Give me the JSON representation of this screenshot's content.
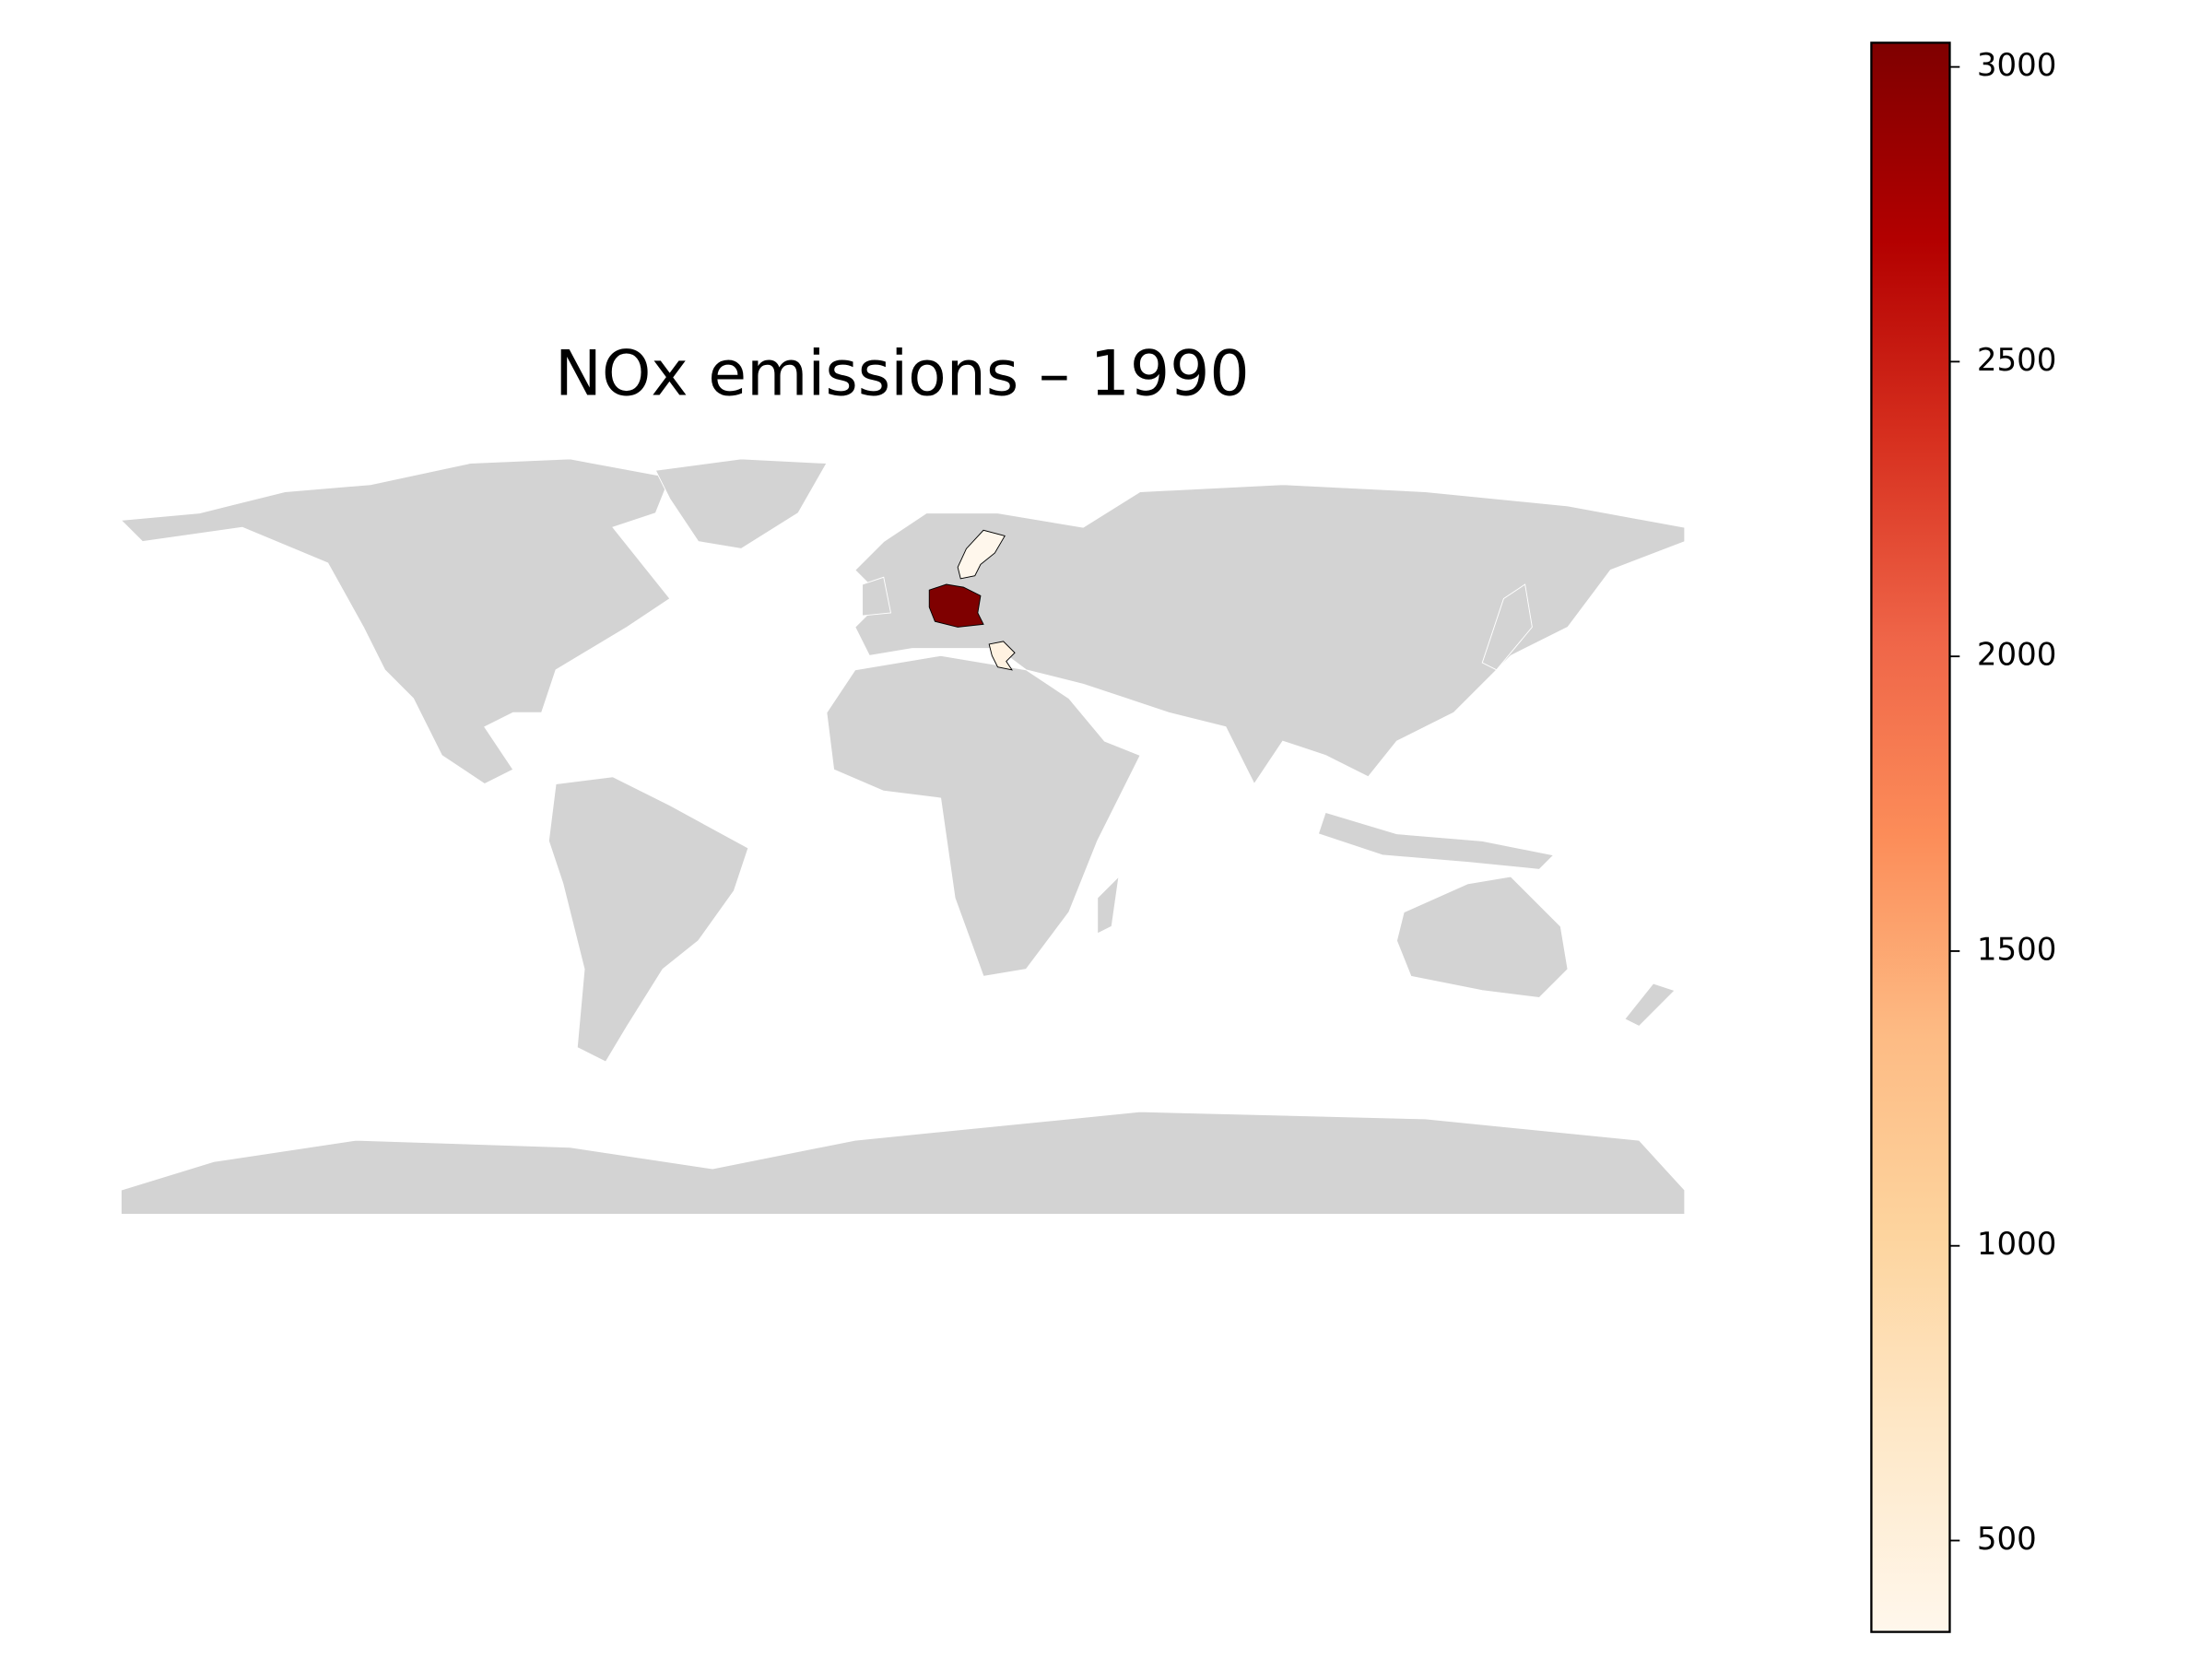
{
  "chart_data": {
    "type": "choropleth",
    "title": "NOx emissions – 1990",
    "values": [
      3041,
      345,
      450
    ],
    "colormap": "OrRd",
    "land_color": "#d3d3d3",
    "clim": [
      345,
      3041
    ],
    "cticks": [
      500,
      1000,
      1500,
      2000,
      2500,
      3000
    ]
  }
}
